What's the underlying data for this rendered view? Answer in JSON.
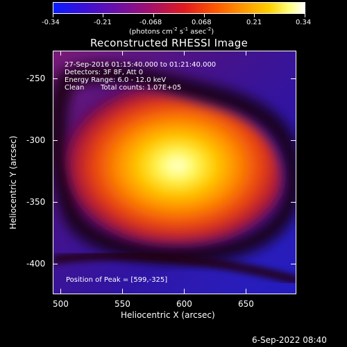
{
  "colorbar": {
    "ticks": [
      "-0.34",
      "-0.21",
      "-0.068",
      "0.068",
      "0.21",
      "0.34"
    ],
    "units": "(photons cm",
    "units_exp1": "-2",
    "units_mid": " s",
    "units_exp2": "-1",
    "units_mid2": " asec",
    "units_exp3": "-2",
    "units_end": ")"
  },
  "title": "Reconstructed RHESSI Image",
  "annotations": {
    "time_range": "27-Sep-2016 01:15:40.000 to 01:21:40.000",
    "detectors": "Detectors: 3F 8F, Att 0",
    "energy": "Energy Range: 6.0 - 12.0 keV",
    "method": "Clean",
    "counts": "Total counts: 1.07E+05",
    "peak": "Position of Peak = [599,-325]"
  },
  "axes": {
    "xlabel": "Heliocentric X (arcsec)",
    "ylabel": "Heliocentric Y (arcsec)",
    "xticks": [
      "500",
      "550",
      "600",
      "650"
    ],
    "yticks": [
      "-250",
      "-300",
      "-350",
      "-400"
    ]
  },
  "footer": {
    "date": "6-Sep-2022 08:40"
  },
  "colors": {
    "background": "#000000",
    "axis": "#ffffff"
  }
}
